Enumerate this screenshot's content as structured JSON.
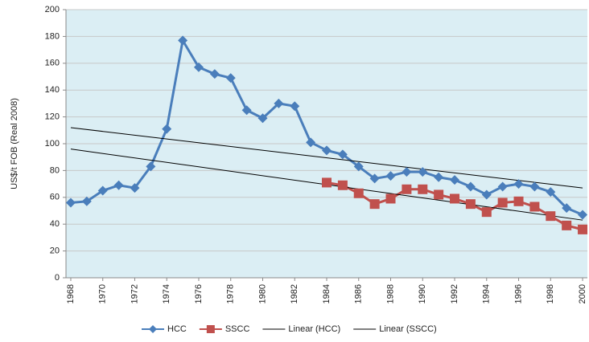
{
  "chart_data": {
    "type": "line",
    "y_label": "US$/t FOB (Real 2008)",
    "x": [
      1968,
      1969,
      1970,
      1971,
      1972,
      1973,
      1974,
      1975,
      1976,
      1977,
      1978,
      1979,
      1980,
      1981,
      1982,
      1983,
      1984,
      1985,
      1986,
      1987,
      1988,
      1989,
      1990,
      1991,
      1992,
      1993,
      1994,
      1995,
      1996,
      1997,
      1998,
      1999,
      2000
    ],
    "series": [
      {
        "name": "HCC",
        "color": "#4a7ebb",
        "marker": "diamond",
        "values": [
          56,
          57,
          65,
          69,
          67,
          83,
          111,
          177,
          157,
          152,
          149,
          125,
          119,
          130,
          128,
          101,
          95,
          92,
          83,
          74,
          76,
          79,
          79,
          75,
          73,
          68,
          62,
          68,
          70,
          68,
          64,
          52,
          47
        ]
      },
      {
        "name": "SSCC",
        "color": "#c0504d",
        "marker": "square",
        "values": [
          null,
          null,
          null,
          null,
          null,
          null,
          null,
          null,
          null,
          null,
          null,
          null,
          null,
          null,
          null,
          null,
          71,
          69,
          63,
          55,
          59,
          66,
          66,
          62,
          59,
          55,
          49,
          56,
          57,
          53,
          46,
          39,
          36
        ]
      },
      {
        "name": "Linear (HCC)",
        "color": "#000000",
        "x": [
          1968,
          2000
        ],
        "values": [
          112,
          67
        ]
      },
      {
        "name": "Linear (SSCC)",
        "color": "#000000",
        "x": [
          1968,
          2000
        ],
        "values": [
          96,
          43
        ]
      }
    ],
    "xlim": [
      1967.7,
      2000.3
    ],
    "xticks": [
      1968,
      1970,
      1972,
      1974,
      1976,
      1978,
      1980,
      1982,
      1984,
      1986,
      1988,
      1990,
      1992,
      1994,
      1996,
      1998,
      2000
    ],
    "ylim": [
      0,
      200
    ],
    "yticks": [
      0,
      20,
      40,
      60,
      80,
      100,
      120,
      140,
      160,
      180,
      200
    ],
    "grid": true,
    "legend": "bottom"
  }
}
